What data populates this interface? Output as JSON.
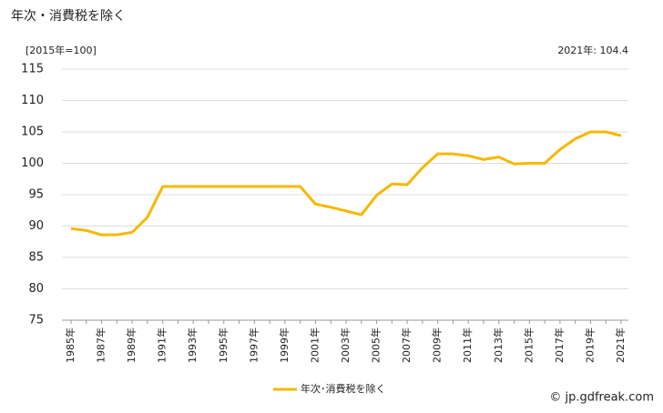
{
  "chart_data": {
    "type": "line",
    "title": "年次・消費税を除く",
    "unit_label": "[2015年=100]",
    "annotation": "2021年: 104.4",
    "categories": [
      "1985年",
      null,
      "1987年",
      null,
      "1989年",
      null,
      "1991年",
      null,
      "1993年",
      null,
      "1995年",
      null,
      "1997年",
      null,
      "1999年",
      null,
      "2001年",
      null,
      "2003年",
      null,
      "2005年",
      null,
      "2007年",
      null,
      "2009年",
      null,
      "2011年",
      null,
      "2013年",
      null,
      "2015年",
      null,
      "2017年",
      null,
      "2019年",
      null,
      "2021年"
    ],
    "series": [
      {
        "name": "年次･消費税を除く",
        "color": "#f5b800",
        "values": [
          89.6,
          89.3,
          88.6,
          88.6,
          89.0,
          91.4,
          96.3,
          96.3,
          96.3,
          96.3,
          96.3,
          96.3,
          96.3,
          96.3,
          96.3,
          96.3,
          93.5,
          93.0,
          92.4,
          91.8,
          94.9,
          96.7,
          96.6,
          99.3,
          101.5,
          101.5,
          101.2,
          100.6,
          101.0,
          99.9,
          100.0,
          100.0,
          102.2,
          103.9,
          105.0,
          105.0,
          104.4
        ]
      }
    ],
    "ylim": [
      75,
      115
    ],
    "yticks": [
      75,
      80,
      85,
      90,
      95,
      100,
      105,
      110,
      115
    ],
    "grid": true,
    "watermark": "© jp.gdfreak.com"
  }
}
